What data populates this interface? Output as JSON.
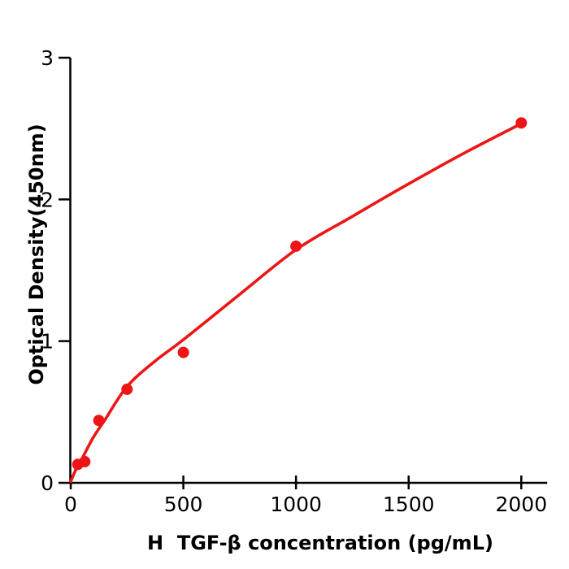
{
  "chart_data": {
    "type": "scatter",
    "title": "",
    "xlabel": "H  TGF-β concentration (pg/mL)",
    "ylabel": "Optical Density(450nm)",
    "xlim": [
      0,
      2115
    ],
    "ylim": [
      0,
      3
    ],
    "xticks": [
      0,
      500,
      1000,
      1500,
      2000
    ],
    "yticks": [
      0,
      1,
      2,
      3
    ],
    "grid": false,
    "legend": "none",
    "axis_color": "#000000",
    "tick_label_color": "#000000",
    "marker_color": "#ed1515",
    "line_color": "#ed1515",
    "points": [
      {
        "x": 31.25,
        "y": 0.13
      },
      {
        "x": 62.5,
        "y": 0.15
      },
      {
        "x": 125,
        "y": 0.44
      },
      {
        "x": 250,
        "y": 0.66
      },
      {
        "x": 500,
        "y": 0.92
      },
      {
        "x": 1000,
        "y": 1.67
      },
      {
        "x": 2000,
        "y": 2.54
      }
    ],
    "fit_curve": [
      [
        0,
        0.01
      ],
      [
        25,
        0.1
      ],
      [
        50,
        0.17
      ],
      [
        100,
        0.32
      ],
      [
        150,
        0.44
      ],
      [
        250,
        0.68
      ],
      [
        375,
        0.86
      ],
      [
        500,
        1.01
      ],
      [
        750,
        1.33
      ],
      [
        1000,
        1.645
      ],
      [
        1250,
        1.88
      ],
      [
        1500,
        2.11
      ],
      [
        1750,
        2.33
      ],
      [
        2000,
        2.535
      ]
    ]
  }
}
